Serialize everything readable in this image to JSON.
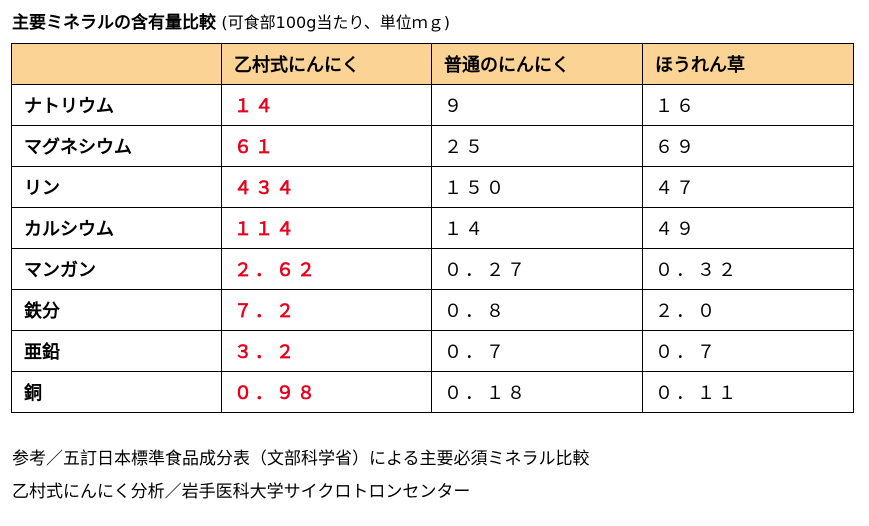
{
  "title": {
    "main": "主要ミネラルの含有量比較",
    "sub": "(可食部100g当たり、単位ｍｇ)"
  },
  "table": {
    "headers": [
      "",
      "乙村式にんにく",
      "普通のにんにく",
      "ほうれん草"
    ],
    "rows": [
      {
        "label": "ナトリウム",
        "values": [
          "１４",
          "９",
          "１６"
        ]
      },
      {
        "label": "マグネシウム",
        "values": [
          "６１",
          "２５",
          "６９"
        ]
      },
      {
        "label": "リン",
        "values": [
          "４３４",
          "１５０",
          "４７"
        ]
      },
      {
        "label": "カルシウム",
        "values": [
          "１１４",
          "１４",
          "４９"
        ]
      },
      {
        "label": "マンガン",
        "values": [
          "２．６２",
          "０．２７",
          "０．３２"
        ]
      },
      {
        "label": "鉄分",
        "values": [
          "７．２",
          "０．８",
          "２．０"
        ]
      },
      {
        "label": "亜鉛",
        "values": [
          "３．２",
          "０．７",
          "０．７"
        ]
      },
      {
        "label": "銅",
        "values": [
          "０．９８",
          "０．１８",
          "０．１１"
        ]
      }
    ]
  },
  "notes": {
    "source1": "参考／五訂日本標準食品成分表（文部科学省）による主要必須ミネラル比較",
    "source2": "乙村式にんにく分析／岩手医科大学サイクロトロンセンター"
  },
  "colors": {
    "header_bg": "#fbd495",
    "highlight_text": "#e8001c"
  }
}
